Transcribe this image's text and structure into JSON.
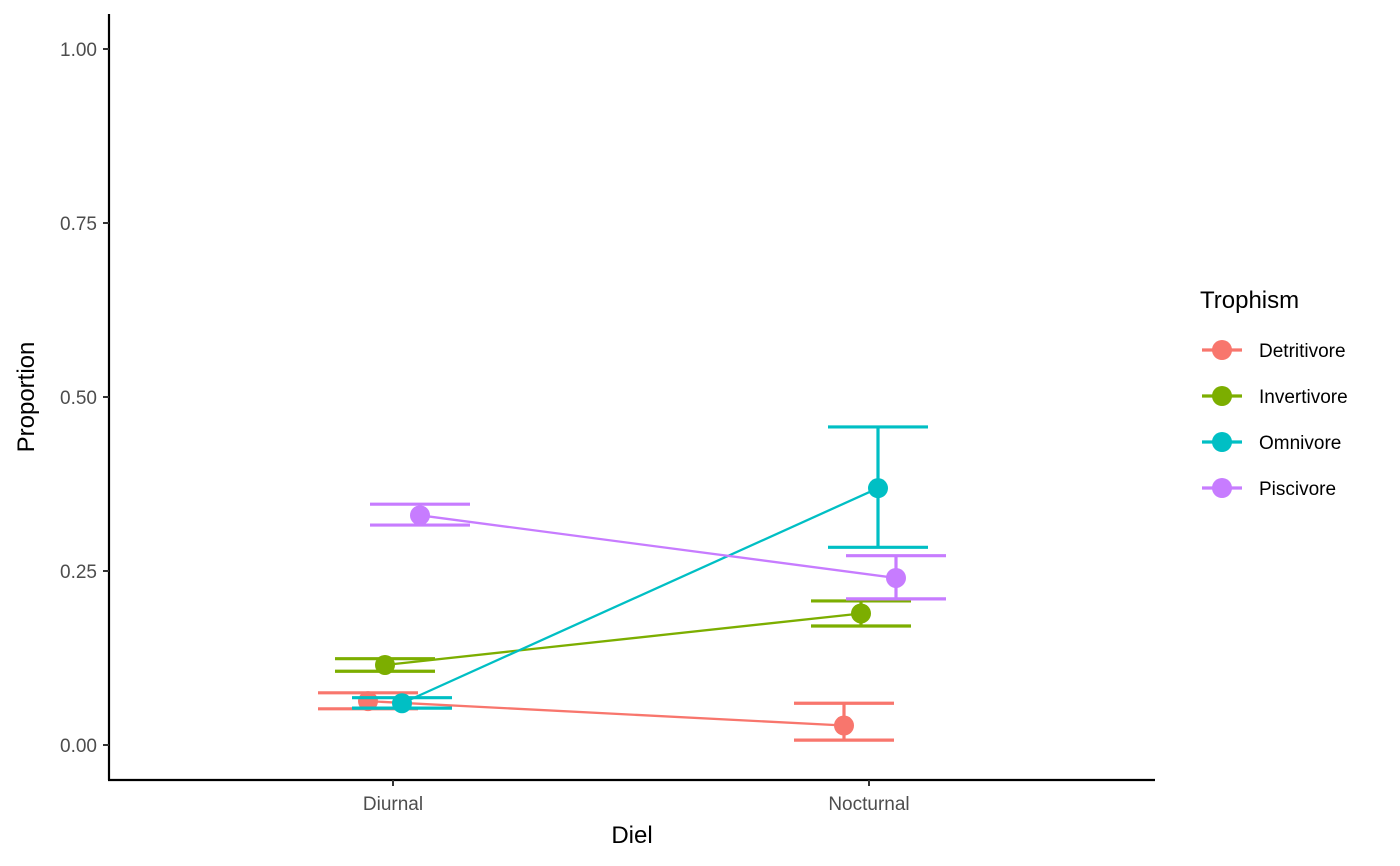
{
  "chart_data": {
    "type": "line",
    "xlabel": "Diel",
    "ylabel": "Proportion",
    "categories": [
      "Diurnal",
      "Nocturnal"
    ],
    "ylim": [
      0,
      1
    ],
    "yticks": [
      "0.00",
      "0.25",
      "0.50",
      "0.75",
      "1.00"
    ],
    "yticks_values": [
      0,
      0.25,
      0.5,
      0.75,
      1.0
    ],
    "legend": {
      "title": "Trophism",
      "position": "right"
    },
    "grid": false,
    "series": [
      {
        "name": "Detritivore",
        "color": "#F8766D",
        "values": [
          0.063,
          0.028
        ],
        "lower": [
          0.052,
          0.007
        ],
        "upper": [
          0.075,
          0.06
        ]
      },
      {
        "name": "Invertivore",
        "color": "#7CAE00",
        "values": [
          0.115,
          0.189
        ],
        "lower": [
          0.106,
          0.171
        ],
        "upper": [
          0.124,
          0.207
        ]
      },
      {
        "name": "Omnivore",
        "color": "#00BFC4",
        "values": [
          0.06,
          0.369
        ],
        "lower": [
          0.053,
          0.284
        ],
        "upper": [
          0.068,
          0.457
        ]
      },
      {
        "name": "Piscivore",
        "color": "#C77CFF",
        "values": [
          0.33,
          0.24
        ],
        "lower": [
          0.316,
          0.21
        ],
        "upper": [
          0.346,
          0.272
        ]
      }
    ]
  }
}
